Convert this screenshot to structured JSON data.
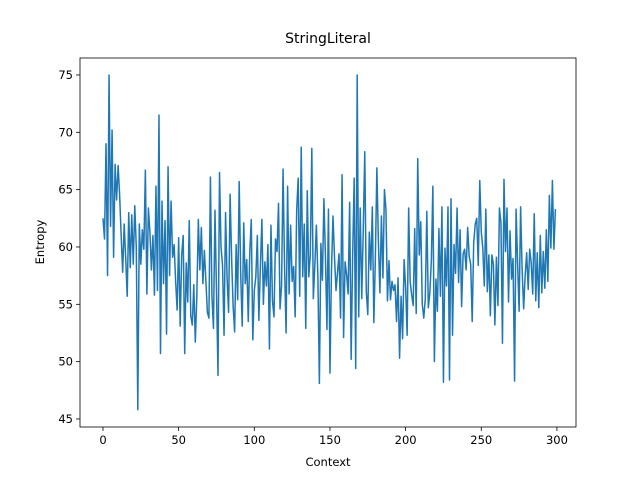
{
  "chart_data": {
    "type": "line",
    "title": "StringLiteral",
    "x_label": "Context",
    "y_label": "Entropy",
    "color": "#1f77b4",
    "xlim": [
      -15.2,
      312.6
    ],
    "ylim": [
      44.3,
      76.48
    ],
    "xticks": [
      0,
      50,
      100,
      150,
      200,
      250,
      300
    ],
    "yticks": [
      45,
      50,
      55,
      60,
      65,
      70,
      75
    ],
    "x": [
      0,
      1,
      2,
      3,
      4,
      5,
      6,
      7,
      8,
      9,
      10,
      11,
      12,
      13,
      14,
      15,
      16,
      17,
      18,
      19,
      20,
      21,
      22,
      23,
      24,
      25,
      26,
      27,
      28,
      29,
      30,
      31,
      32,
      33,
      34,
      35,
      36,
      37,
      38,
      39,
      40,
      41,
      42,
      43,
      44,
      45,
      46,
      47,
      48,
      49,
      50,
      51,
      52,
      53,
      54,
      55,
      56,
      57,
      58,
      59,
      60,
      61,
      62,
      63,
      64,
      65,
      66,
      67,
      68,
      69,
      70,
      71,
      72,
      73,
      74,
      75,
      76,
      77,
      78,
      79,
      80,
      81,
      82,
      83,
      84,
      85,
      86,
      87,
      88,
      89,
      90,
      91,
      92,
      93,
      94,
      95,
      96,
      97,
      98,
      99,
      100,
      101,
      102,
      103,
      104,
      105,
      106,
      107,
      108,
      109,
      110,
      111,
      112,
      113,
      114,
      115,
      116,
      117,
      118,
      119,
      120,
      121,
      122,
      123,
      124,
      125,
      126,
      127,
      128,
      129,
      130,
      131,
      132,
      133,
      134,
      135,
      136,
      137,
      138,
      139,
      140,
      141,
      142,
      143,
      144,
      145,
      146,
      147,
      148,
      149,
      150,
      151,
      152,
      153,
      154,
      155,
      156,
      157,
      158,
      159,
      160,
      161,
      162,
      163,
      164,
      165,
      166,
      167,
      168,
      169,
      170,
      171,
      172,
      173,
      174,
      175,
      176,
      177,
      178,
      179,
      180,
      181,
      182,
      183,
      184,
      185,
      186,
      187,
      188,
      189,
      190,
      191,
      192,
      193,
      194,
      195,
      196,
      197,
      198,
      199,
      200,
      201,
      202,
      203,
      204,
      205,
      206,
      207,
      208,
      209,
      210,
      211,
      212,
      213,
      214,
      215,
      216,
      217,
      218,
      219,
      220,
      221,
      222,
      223,
      224,
      225,
      226,
      227,
      228,
      229,
      230,
      231,
      232,
      233,
      234,
      235,
      236,
      237,
      238,
      239,
      240,
      241,
      242,
      243,
      244,
      245,
      246,
      247,
      248,
      249,
      250,
      251,
      252,
      253,
      254,
      255,
      256,
      257,
      258,
      259,
      260,
      261,
      262,
      263,
      264,
      265,
      266,
      267,
      268,
      269,
      270,
      271,
      272,
      273,
      274,
      275,
      276,
      277,
      278,
      279,
      280,
      281,
      282,
      283,
      284,
      285,
      286,
      287,
      288,
      289,
      290,
      291,
      292,
      293,
      294,
      295,
      296,
      297,
      298,
      299
    ],
    "values": [
      62.5,
      60.7,
      69.0,
      57.5,
      75.0,
      61.8,
      70.2,
      59.1,
      67.2,
      64.1,
      67.1,
      64.5,
      61.0,
      57.8,
      62.0,
      59.0,
      55.7,
      63.0,
      58.2,
      62.8,
      58.5,
      63.6,
      60.0,
      45.8,
      62.0,
      58.5,
      61.5,
      59.8,
      66.7,
      55.9,
      63.4,
      61.3,
      58.0,
      61.0,
      55.8,
      65.3,
      56.2,
      71.5,
      50.7,
      64.0,
      56.8,
      62.3,
      52.4,
      67.0,
      57.5,
      64.0,
      59.1,
      60.2,
      57.0,
      54.5,
      60.8,
      53.1,
      59.3,
      61.0,
      50.7,
      58.6,
      55.2,
      62.3,
      54.0,
      53.2,
      56.7,
      51.7,
      55.6,
      62.4,
      58.0,
      61.7,
      56.8,
      59.7,
      57.0,
      54.3,
      53.8,
      66.1,
      55.7,
      52.9,
      63.2,
      56.2,
      48.8,
      66.5,
      60.0,
      58.4,
      52.3,
      63.0,
      57.3,
      54.3,
      64.6,
      59.0,
      54.8,
      52.6,
      60.2,
      55.4,
      65.7,
      57.7,
      53.1,
      62.1,
      56.8,
      58.9,
      53.5,
      59.5,
      62.4,
      51.9,
      56.2,
      57.4,
      61.0,
      53.6,
      58.2,
      62.4,
      55.0,
      58.7,
      56.6,
      60.2,
      51.1,
      61.9,
      55.3,
      53.9,
      60.7,
      59.6,
      63.8,
      54.6,
      56.6,
      66.8,
      58.2,
      52.5,
      65.3,
      55.9,
      61.9,
      57.0,
      58.3,
      53.9,
      63.2,
      66.0,
      55.7,
      68.7,
      57.4,
      62.0,
      52.9,
      64.9,
      57.4,
      59.3,
      68.6,
      55.5,
      58.4,
      61.9,
      57.5,
      48.1,
      60.3,
      57.1,
      64.2,
      59.2,
      52.8,
      63.3,
      49.0,
      58.0,
      62.7,
      59.1,
      56.2,
      57.8,
      59.4,
      53.8,
      66.3,
      52.1,
      58.7,
      57.6,
      55.9,
      63.9,
      50.2,
      59.3,
      66.0,
      49.4,
      75.0,
      53.9,
      63.4,
      55.5,
      61.5,
      68.3,
      56.1,
      54.1,
      61.3,
      58.0,
      63.5,
      53.4,
      59.0,
      66.9,
      60.5,
      56.0,
      62.7,
      57.3,
      65.0,
      63.3,
      55.3,
      58.8,
      55.4,
      57.0,
      56.2,
      56.7,
      53.5,
      57.3,
      50.3,
      55.7,
      52.0,
      58.9,
      56.5,
      52.3,
      63.4,
      57.0,
      55.8,
      54.9,
      61.6,
      54.2,
      67.7,
      59.3,
      62.2,
      55.0,
      53.8,
      55.5,
      63.1,
      54.7,
      56.0,
      58.8,
      65.3,
      50.0,
      57.2,
      54.4,
      61.6,
      55.7,
      63.5,
      48.2,
      59.9,
      56.6,
      63.5,
      48.4,
      64.2,
      52.3,
      60.2,
      57.7,
      63.4,
      56.9,
      61.5,
      54.8,
      59.4,
      59.8,
      58.0,
      61.7,
      59.2,
      58.5,
      53.5,
      60.4,
      62.0,
      62.5,
      58.4,
      65.8,
      61.3,
      59.9,
      56.6,
      63.3,
      56.1,
      59.3,
      54.0,
      59.3,
      58.5,
      53.2,
      59.1,
      54.9,
      63.4,
      62.1,
      51.6,
      65.9,
      59.6,
      63.4,
      55.2,
      61.4,
      57.2,
      59.0,
      48.3,
      63.3,
      58.6,
      54.4,
      63.5,
      58.0,
      54.6,
      57.5,
      59.5,
      56.3,
      59.8,
      58.6,
      55.9,
      62.9,
      55.3,
      59.5,
      54.7,
      61.0,
      56.0,
      59.6,
      56.4,
      61.5,
      57.0,
      64.5,
      59.9,
      65.8,
      59.8,
      63.3
    ]
  }
}
